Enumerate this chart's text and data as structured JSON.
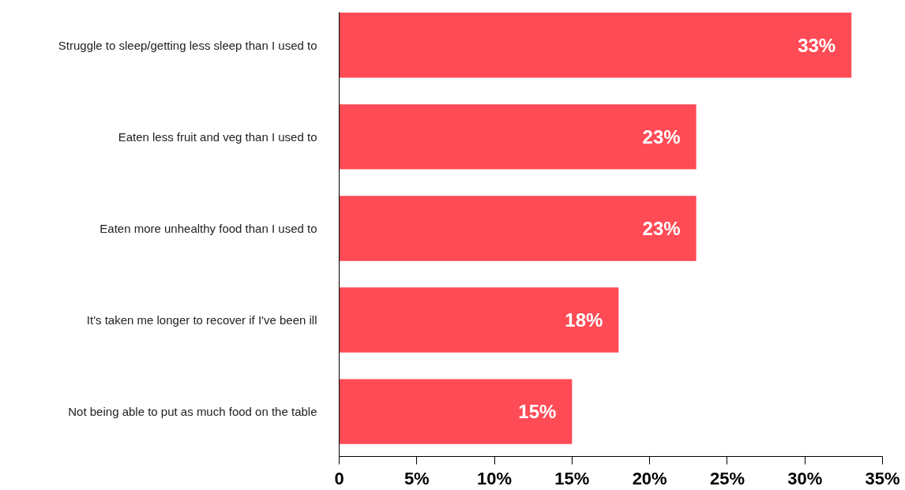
{
  "chart_data": {
    "type": "bar",
    "orientation": "horizontal",
    "categories": [
      "Struggle to sleep/getting less sleep than I used to",
      "Eaten less fruit and veg than I used to",
      "Eaten more unhealthy food than I used to",
      "It's taken me longer to recover if I've been ill",
      "Not being able to put as much food on the table"
    ],
    "values": [
      33,
      23,
      23,
      18,
      15
    ],
    "value_labels": [
      "33%",
      "23%",
      "23%",
      "18%",
      "15%"
    ],
    "color": "#ff4b55",
    "xlim": [
      0,
      35
    ],
    "xticks": [
      0,
      {
        "value": 5,
        "label": "5%"
      },
      {
        "value": 10,
        "label": "10%"
      },
      {
        "value": 15,
        "label": "15%"
      },
      {
        "value": 20,
        "label": "20%"
      },
      {
        "value": 25,
        "label": "25%"
      },
      {
        "value": 30,
        "label": "30%"
      },
      {
        "value": 35,
        "label": "35%"
      }
    ],
    "grid": false
  }
}
